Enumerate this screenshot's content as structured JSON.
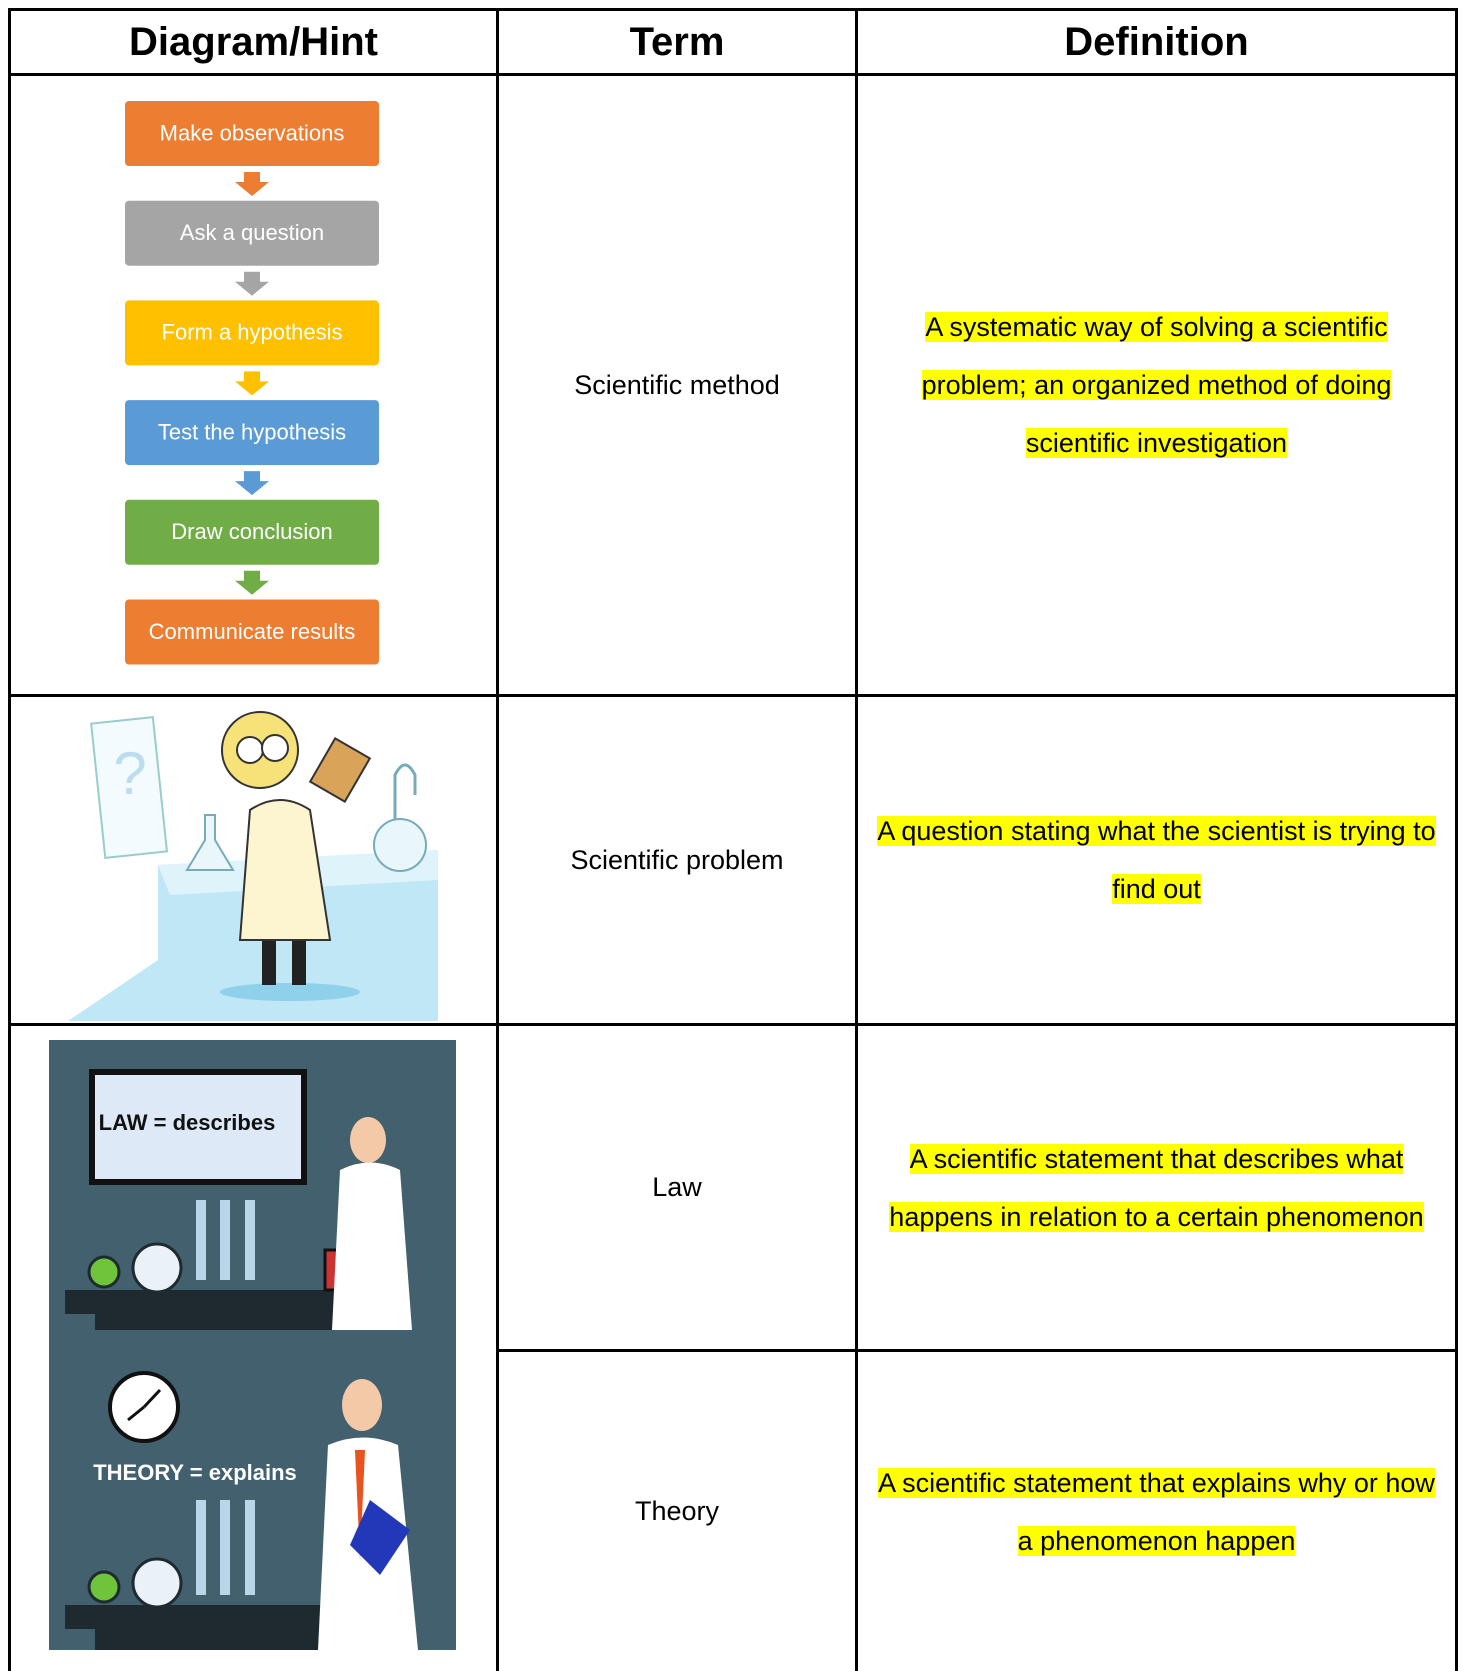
{
  "header": [
    "Diagram/Hint",
    "Term",
    "Definition"
  ],
  "flowchart": [
    {
      "label": "Make observations",
      "color": "#ed7d31"
    },
    {
      "label": "Ask a question",
      "color": "#a5a5a5"
    },
    {
      "label": "Form a hypothesis",
      "color": "#ffc000"
    },
    {
      "label": "Test the hypothesis",
      "color": "#5b9bd5"
    },
    {
      "label": "Draw conclusion",
      "color": "#70ad47"
    },
    {
      "label": "Communicate results",
      "color": "#ed7d31"
    }
  ],
  "illustration_labels": [
    "LAW = describes",
    "THEORY = explains"
  ],
  "rows": [
    {
      "term": "Scientific method",
      "definition": "A systematic way of solving a scientific problem; an organized method of doing scientific investigation"
    },
    {
      "term": "Scientific problem",
      "definition": "A question stating what the scientist is trying to find out"
    },
    {
      "term": "Law",
      "definition": "A scientific statement that describes what happens in relation to a certain phenomenon"
    },
    {
      "term": "Theory",
      "definition": "A scientific statement that explains why or how a phenomenon happen"
    }
  ]
}
